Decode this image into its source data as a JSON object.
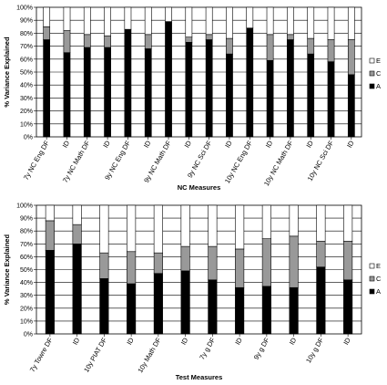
{
  "legend": [
    {
      "key": "E",
      "label": "E",
      "color": "#ffffff"
    },
    {
      "key": "C",
      "label": "C",
      "color": "#999999"
    },
    {
      "key": "A",
      "label": "A",
      "color": "#000000"
    }
  ],
  "chart_data": [
    {
      "type": "bar",
      "stacked": true,
      "xlabel": "NC Measures",
      "ylabel": "% Variance Explained",
      "ylim": [
        0,
        100
      ],
      "yticks": [
        "0%",
        "10%",
        "20%",
        "30%",
        "40%",
        "50%",
        "60%",
        "70%",
        "80%",
        "90%",
        "100%"
      ],
      "grid": true,
      "legend_position": "right",
      "categories": [
        "7y NC Eng DF",
        "ID",
        "7y NC Math DF",
        "ID",
        "9y NC Eng DF",
        "ID",
        "9y NC Math DF",
        "ID",
        "9y NC Sci DF",
        "ID",
        "10y NC Eng DF",
        "ID",
        "10y NC Math DF",
        "ID",
        "10y NC Sci DF",
        "ID"
      ],
      "series": [
        {
          "name": "A",
          "values": [
            75,
            65,
            69,
            69,
            83,
            68,
            89,
            73,
            75,
            64,
            84,
            59,
            75,
            64,
            58,
            48
          ]
        },
        {
          "name": "C",
          "values": [
            10,
            17,
            10,
            9,
            0,
            11,
            0,
            4,
            4,
            12,
            0,
            20,
            4,
            12,
            17,
            27
          ]
        },
        {
          "name": "E",
          "values": [
            15,
            18,
            21,
            22,
            17,
            21,
            11,
            23,
            21,
            24,
            16,
            21,
            21,
            24,
            25,
            25
          ]
        }
      ]
    },
    {
      "type": "bar",
      "stacked": true,
      "xlabel": "Test Measures",
      "ylabel": "% Variance Explained",
      "ylim": [
        0,
        100
      ],
      "yticks": [
        "0%",
        "10%",
        "20%",
        "30%",
        "40%",
        "50%",
        "60%",
        "70%",
        "80%",
        "90%",
        "100%"
      ],
      "grid": true,
      "legend_position": "right",
      "categories": [
        "7y Towre DF",
        "ID",
        "10y PIAT DF",
        "ID",
        "10y Math DF",
        "ID",
        "7y g DF",
        "ID",
        "9y g DF",
        "ID",
        "10y g DF",
        "ID"
      ],
      "series": [
        {
          "name": "A",
          "values": [
            65,
            70,
            43,
            39,
            47,
            49,
            42,
            36,
            37,
            36,
            52,
            42
          ]
        },
        {
          "name": "C",
          "values": [
            23,
            15,
            20,
            25,
            16,
            19,
            26,
            30,
            37,
            40,
            20,
            30
          ]
        },
        {
          "name": "E",
          "values": [
            12,
            15,
            37,
            36,
            37,
            32,
            32,
            34,
            26,
            24,
            28,
            28
          ]
        }
      ]
    }
  ]
}
